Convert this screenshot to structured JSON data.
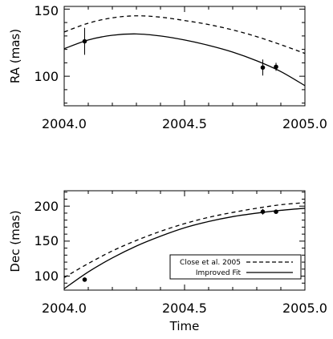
{
  "chart_data": [
    {
      "type": "line",
      "ylabel": "RA (mas)",
      "xlabel": "",
      "xlim": [
        2004.0,
        2005.0
      ],
      "ylim": [
        78,
        152
      ],
      "xticks": [
        2004.0,
        2004.5,
        2005.0
      ],
      "xtick_labels": [
        "2004.0",
        "2004.5",
        "2005.0"
      ],
      "yticks": [
        100,
        150
      ],
      "ytick_labels": [
        "100",
        "150"
      ],
      "legend": null,
      "series": [
        {
          "style": "dashed",
          "x": [
            2004.0,
            2004.1,
            2004.2,
            2004.3,
            2004.4,
            2004.5,
            2004.6,
            2004.7,
            2004.8,
            2004.9,
            2005.0
          ],
          "y": [
            133,
            139.5,
            143.5,
            145,
            144,
            141.5,
            138.5,
            134.5,
            129.5,
            123.5,
            117
          ]
        },
        {
          "style": "solid",
          "x": [
            2004.0,
            2004.1,
            2004.2,
            2004.3,
            2004.4,
            2004.5,
            2004.6,
            2004.7,
            2004.8,
            2004.9,
            2005.0
          ],
          "y": [
            120.5,
            127,
            130.5,
            131.5,
            130,
            127,
            123,
            118,
            111.5,
            103.5,
            93
          ]
        }
      ],
      "points": [
        {
          "x": 2004.085,
          "y": 126,
          "err": 10
        },
        {
          "x": 2004.825,
          "y": 106.5,
          "err": 6
        },
        {
          "x": 2004.88,
          "y": 107,
          "err": 3
        }
      ]
    },
    {
      "type": "line",
      "ylabel": "Dec (mas)",
      "xlabel": "Time",
      "xlim": [
        2004.0,
        2005.0
      ],
      "ylim": [
        80,
        222
      ],
      "xticks": [
        2004.0,
        2004.5,
        2005.0
      ],
      "xtick_labels": [
        "2004.0",
        "2004.5",
        "2005.0"
      ],
      "yticks": [
        100,
        150,
        200
      ],
      "ytick_labels": [
        "100",
        "150",
        "200"
      ],
      "legend": {
        "position": "lower-right",
        "entries": [
          {
            "label": "Close et al. 2005",
            "style": "dashed"
          },
          {
            "label": "Improved Fit",
            "style": "solid"
          }
        ]
      },
      "series": [
        {
          "name": "Close et al. 2005",
          "style": "dashed",
          "x": [
            2004.0,
            2004.1,
            2004.2,
            2004.3,
            2004.4,
            2004.5,
            2004.6,
            2004.7,
            2004.8,
            2004.9,
            2005.0
          ],
          "y": [
            98,
            118,
            136,
            151,
            164,
            175,
            184,
            191,
            197,
            202,
            205
          ]
        },
        {
          "name": "Improved Fit",
          "style": "solid",
          "x": [
            2004.0,
            2004.1,
            2004.2,
            2004.3,
            2004.4,
            2004.5,
            2004.6,
            2004.7,
            2004.8,
            2004.9,
            2005.0
          ],
          "y": [
            82,
            106,
            126,
            143,
            157,
            169,
            178,
            185,
            190,
            194,
            197
          ]
        }
      ],
      "points": [
        {
          "x": 2004.085,
          "y": 95,
          "err": 3
        },
        {
          "x": 2004.825,
          "y": 192,
          "err": 4
        },
        {
          "x": 2004.88,
          "y": 192,
          "err": 2
        }
      ]
    }
  ]
}
